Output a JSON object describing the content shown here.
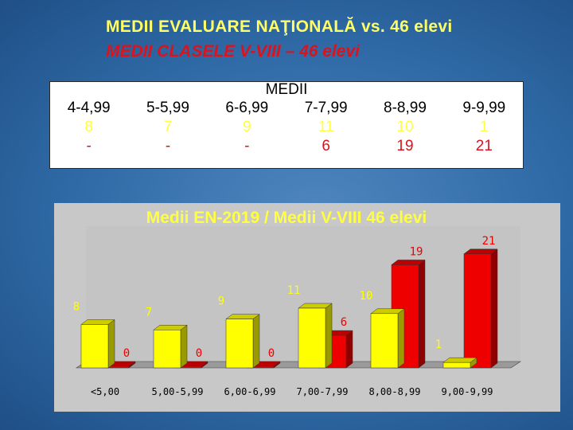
{
  "slide": {
    "title_line1": "MEDII EVALUARE NAŢIONALĂ vs. 46 elevi",
    "title_line2": "MEDII CLASELE V-VIII – 46 elevi"
  },
  "grades_table": {
    "top_label": "MEDII",
    "headers": [
      "4-4,99",
      "5-5,99",
      "6-6,99",
      "7-7,99",
      "8-8,99",
      "9-9,99"
    ],
    "row_en": [
      "8",
      "7",
      "9",
      "11",
      "10",
      "1"
    ],
    "row_classes": [
      "-",
      "-",
      "-",
      "6",
      "19",
      "21"
    ]
  },
  "chart_data": {
    "type": "bar",
    "title": "Medii EN-2019 / Medii V-VIII 46 elevi",
    "categories": [
      "<5,00",
      "5,00-5,99",
      "6,00-6,99",
      "7,00-7,99",
      "8,00-8,99",
      "9,00-9,99"
    ],
    "series": [
      {
        "values": [
          8,
          7,
          9,
          11,
          10,
          1
        ],
        "color": "#ffff00"
      },
      {
        "values": [
          0,
          0,
          0,
          6,
          19,
          21
        ],
        "color": "#ee0000"
      }
    ],
    "ylim": [
      0,
      22
    ],
    "grid": false,
    "legend": "none",
    "style": "3d-clustered"
  }
}
